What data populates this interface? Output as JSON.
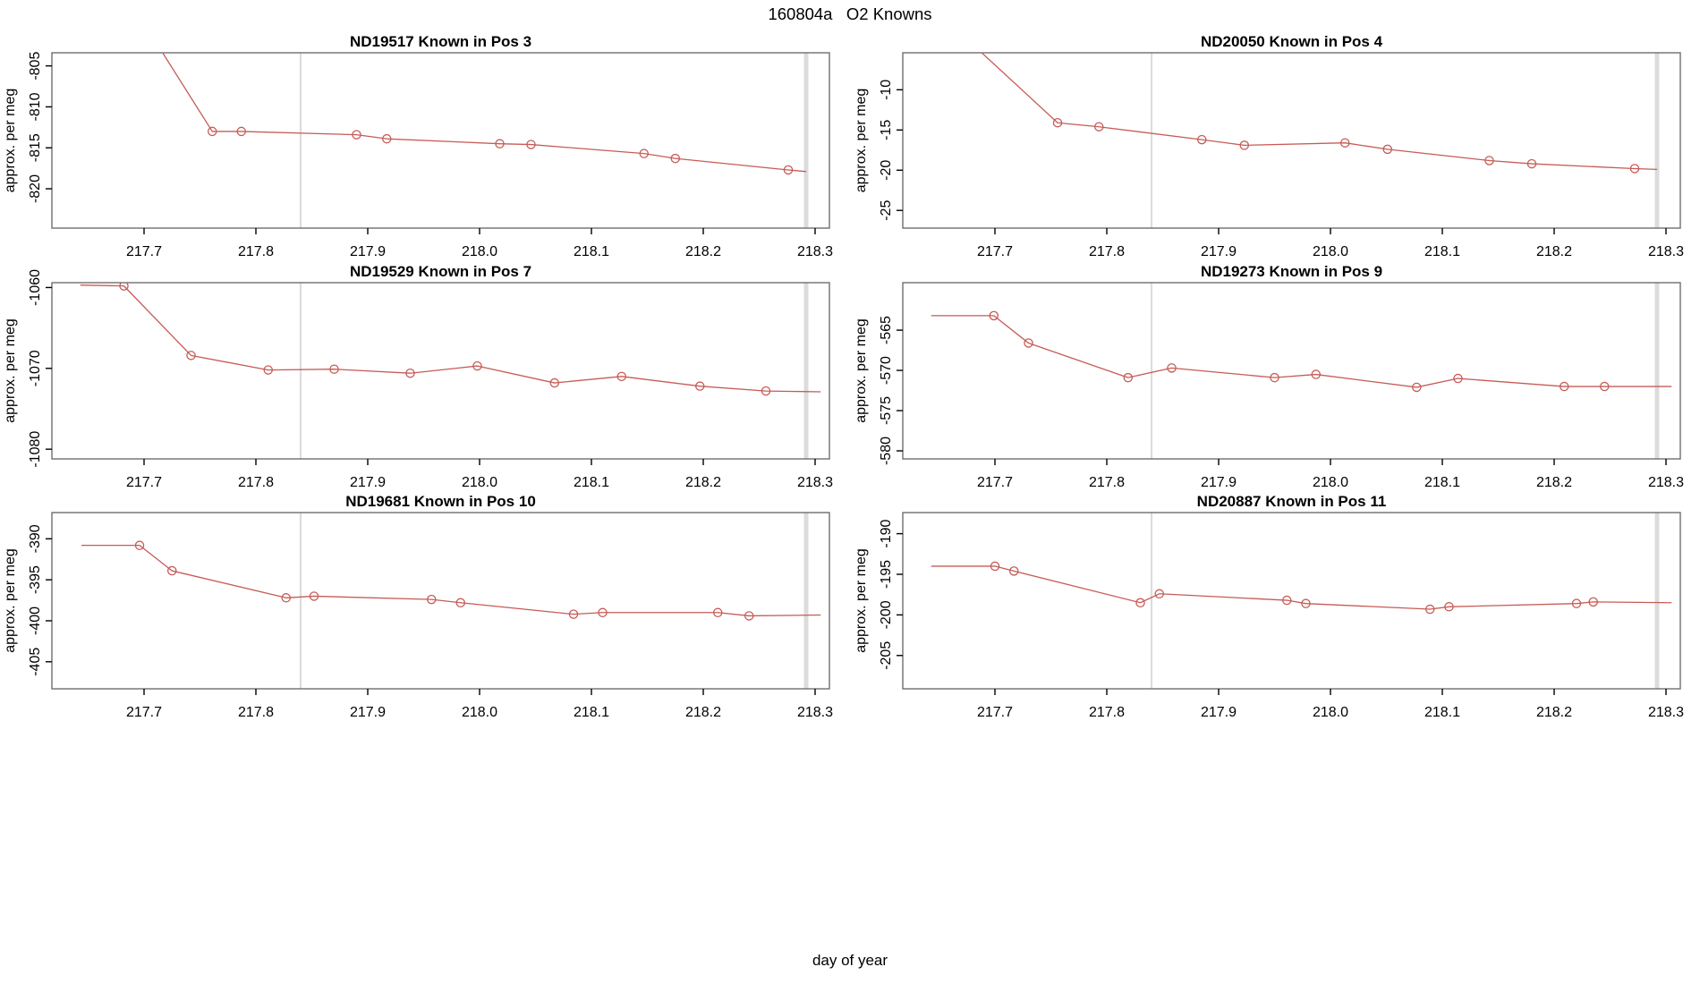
{
  "page": {
    "title": "160804a   O2 Knowns",
    "x_axis_label": "day of year"
  },
  "colors": {
    "series": "#c65b56",
    "reference_line": "#dcdcdc",
    "box_border": "#6e6e6e",
    "tick": "#000000",
    "text": "#000000",
    "background": "#ffffff"
  },
  "chart_data": {
    "type": "line",
    "layout": "3 rows x 2 columns of panels",
    "marker": "open-circle",
    "grid": false,
    "legend": false,
    "xlabel": "day of year",
    "shared": {
      "ylabel": "approx. per meg",
      "xlim": [
        217.6176,
        218.3128
      ],
      "xticks": [
        217.7,
        217.8,
        217.9,
        218.0,
        218.1,
        218.2,
        218.3
      ],
      "reference_lines_x": [
        217.84,
        218.292
      ]
    },
    "panels": [
      {
        "name": "ND19517",
        "pos_label": "Known in Pos 3",
        "title": "ND19517    Known in Pos 3",
        "yticks": [
          -805,
          -810,
          -815,
          -820
        ],
        "ylim": [
          -824.8,
          -803.4
        ],
        "x": [
          217.65,
          217.761,
          217.787,
          217.89,
          217.917,
          218.018,
          218.046,
          218.147,
          218.175,
          218.276
        ],
        "y": [
          -789.0,
          -813.0,
          -813.0,
          -813.4,
          -813.9,
          -814.5,
          -814.6,
          -815.7,
          -816.3,
          -817.7
        ],
        "first_point_marker": true,
        "tail": [
          218.292,
          -817.9
        ]
      },
      {
        "name": "ND20050",
        "pos_label": "Known in Pos 4",
        "title": "ND20050    Known in Pos 4",
        "yticks": [
          -10,
          -15,
          -20,
          -25
        ],
        "ylim": [
          -27.2,
          -5.4
        ],
        "x": [
          217.65,
          217.756,
          217.793,
          217.885,
          217.923,
          218.013,
          218.051,
          218.142,
          218.18,
          218.272
        ],
        "y": [
          -0.5,
          -14.1,
          -14.6,
          -16.2,
          -16.9,
          -16.6,
          -17.4,
          -18.8,
          -19.2,
          -19.8
        ],
        "first_point_marker": true,
        "tail": [
          218.292,
          -19.9
        ]
      },
      {
        "name": "ND19529",
        "pos_label": "Known in Pos 7",
        "title": "ND19529    Known in Pos 7",
        "yticks": [
          -1060,
          -1070,
          -1080
        ],
        "ylim": [
          -1081.2,
          -1059.4
        ],
        "x": [
          217.643,
          217.682,
          217.742,
          217.811,
          217.87,
          217.938,
          217.998,
          218.067,
          218.127,
          218.197,
          218.256
        ],
        "y": [
          -1059.7,
          -1059.8,
          -1068.4,
          -1070.2,
          -1070.1,
          -1070.6,
          -1069.7,
          -1071.8,
          -1071.0,
          -1072.2,
          -1072.8
        ],
        "first_point_marker": false,
        "tail": [
          218.305,
          -1072.9
        ]
      },
      {
        "name": "ND19273",
        "pos_label": "Known in Pos 9",
        "title": "ND19273    Known in Pos 9",
        "yticks": [
          -565,
          -570,
          -575,
          -580
        ],
        "ylim": [
          -581.0,
          -559.1
        ],
        "x": [
          217.643,
          217.699,
          217.73,
          217.819,
          217.858,
          217.95,
          217.987,
          218.077,
          218.114,
          218.209,
          218.245
        ],
        "y": [
          -563.2,
          -563.2,
          -566.6,
          -570.9,
          -569.7,
          -570.9,
          -570.5,
          -572.1,
          -571.0,
          -572.0,
          -572.0
        ],
        "first_point_marker": false,
        "tail": [
          218.305,
          -572.0
        ]
      },
      {
        "name": "ND19681",
        "pos_label": "Known in Pos 10",
        "title": "ND19681    Known in Pos 10",
        "yticks": [
          -390,
          -395,
          -400,
          -405
        ],
        "ylim": [
          -408.3,
          -386.8
        ],
        "x": [
          217.644,
          217.696,
          217.725,
          217.827,
          217.852,
          217.957,
          217.983,
          218.084,
          218.11,
          218.213,
          218.241
        ],
        "y": [
          -390.8,
          -390.8,
          -393.9,
          -397.2,
          -397.0,
          -397.4,
          -397.8,
          -399.2,
          -399.0,
          -399.0,
          -399.4
        ],
        "first_point_marker": false,
        "tail": [
          218.305,
          -399.3
        ]
      },
      {
        "name": "ND20887",
        "pos_label": "Known in Pos 11",
        "title": "ND20887    Known in Pos 11",
        "yticks": [
          -190,
          -195,
          -200,
          -205
        ],
        "ylim": [
          -209.1,
          -187.4
        ],
        "x": [
          217.643,
          217.7,
          217.717,
          217.83,
          217.847,
          217.961,
          217.978,
          218.089,
          218.106,
          218.22,
          218.235
        ],
        "y": [
          -194.0,
          -194.0,
          -194.6,
          -198.5,
          -197.4,
          -198.2,
          -198.6,
          -199.3,
          -199.0,
          -198.6,
          -198.4
        ],
        "first_point_marker": false,
        "tail": [
          218.305,
          -198.5
        ]
      }
    ]
  }
}
